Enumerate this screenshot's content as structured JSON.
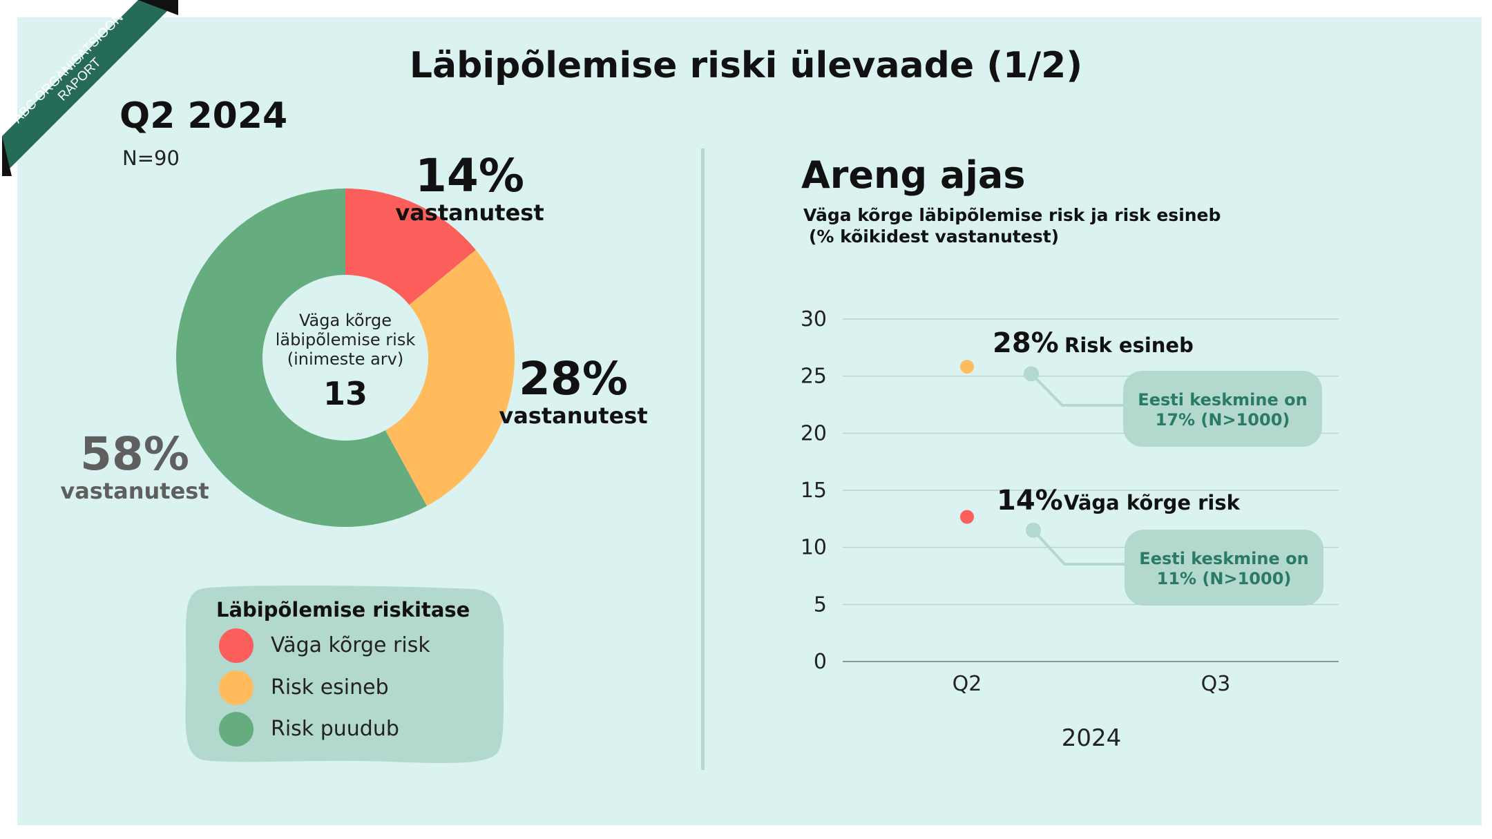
{
  "ribbon": {
    "line1": "ABC ORGANISATSIOON",
    "line2": "RAPORT"
  },
  "title": "Läbipõlemise riski ülevaade (1/2)",
  "quarter": "Q2 2024",
  "n_label": "N=90",
  "donut_center": {
    "line1": "Väga kõrge",
    "line2": "läbipõlemise risk",
    "line3": "(inimeste arv)",
    "value": "13"
  },
  "donut_labels": {
    "red": {
      "pct": "14%",
      "sub": "vastanutest"
    },
    "orange": {
      "pct": "28%",
      "sub": "vastanutest"
    },
    "green": {
      "pct": "58%",
      "sub": "vastanutest"
    }
  },
  "legend": {
    "title": "Läbipõlemise riskitase",
    "items": [
      "Väga kõrge risk",
      "Risk esineb",
      "Risk puudub"
    ]
  },
  "trend": {
    "title": "Areng ajas",
    "subtitle_line1": "Väga kõrge läbipõlemise risk ja risk esineb",
    "subtitle_line2": "(% kõikidest vastanutest)",
    "label_risk_pct": "28%",
    "label_risk_name": "Risk esineb",
    "label_high_pct": "14%",
    "label_high_name": "Väga kõrge risk",
    "avg_risk_line1": "Eesti keskmine on",
    "avg_risk_line2": "17% (N>1000)",
    "avg_high_line1": "Eesti keskmine on",
    "avg_high_line2": "11% (N>1000)"
  },
  "colors": {
    "background": "#daf3f0",
    "red": "#fb5e5b",
    "orange": "#ffbb5c",
    "green": "#65ad7f",
    "legend_box": "#b3d8ce",
    "ribbon": "#256b58",
    "callout_text": "#2b7a63"
  },
  "chart_data": [
    {
      "type": "pie",
      "categories": [
        "Väga kõrge risk",
        "Risk esineb",
        "Risk puudub"
      ],
      "values": [
        14,
        28,
        58
      ],
      "center_value": 13,
      "n": 90
    },
    {
      "type": "scatter",
      "title": "Areng ajas",
      "xlabel": "2024",
      "categories": [
        "Q2",
        "Q3"
      ],
      "series": [
        {
          "name": "Risk esineb",
          "values": [
            28,
            null
          ]
        },
        {
          "name": "Väga kõrge risk",
          "values": [
            14,
            null
          ]
        }
      ],
      "yticks": [
        0,
        5,
        10,
        15,
        20,
        25,
        30
      ],
      "ylim": [
        0,
        30
      ],
      "grid": true,
      "reference": [
        {
          "series": "Risk esineb",
          "value": 17
        },
        {
          "series": "Väga kõrge risk",
          "value": 11
        }
      ]
    }
  ]
}
